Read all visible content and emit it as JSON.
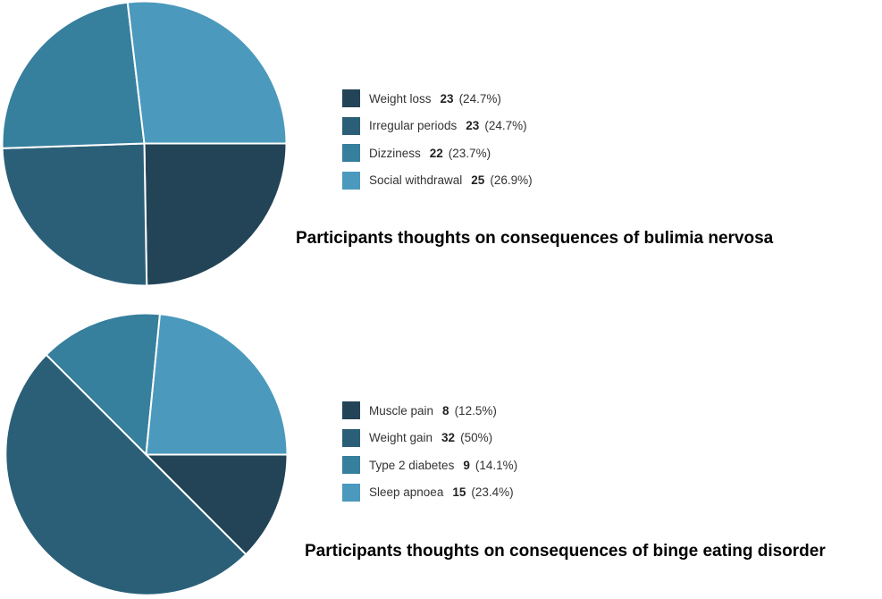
{
  "colors": {
    "slice_1": "#234457",
    "slice_2": "#2b5f78",
    "slice_3": "#367f9d",
    "slice_4": "#4b99bd",
    "slice_border": "#ffffff",
    "background": "#ffffff"
  },
  "chart_data": [
    {
      "type": "pie",
      "title": "Participants thoughts on consequences of bulimia nervosa",
      "start_angle_deg": 0,
      "direction": "clockwise",
      "categories": [
        "Weight loss",
        "Irregular periods",
        "Dizziness",
        "Social withdrawal"
      ],
      "values": [
        23,
        23,
        22,
        25
      ],
      "percent_labels": [
        "(24.7%)",
        "(24.7%)",
        "(23.7%)",
        "(26.9%)"
      ],
      "legend_position": "right"
    },
    {
      "type": "pie",
      "title": "Participants thoughts on consequences of binge eating disorder",
      "start_angle_deg": 0,
      "direction": "clockwise",
      "categories": [
        "Muscle pain",
        "Weight gain",
        "Type 2 diabetes",
        "Sleep apnoea"
      ],
      "values": [
        8,
        32,
        9,
        15
      ],
      "percent_labels": [
        "(12.5%)",
        "(50%)",
        "(14.1%)",
        "(23.4%)"
      ],
      "legend_position": "right"
    }
  ]
}
